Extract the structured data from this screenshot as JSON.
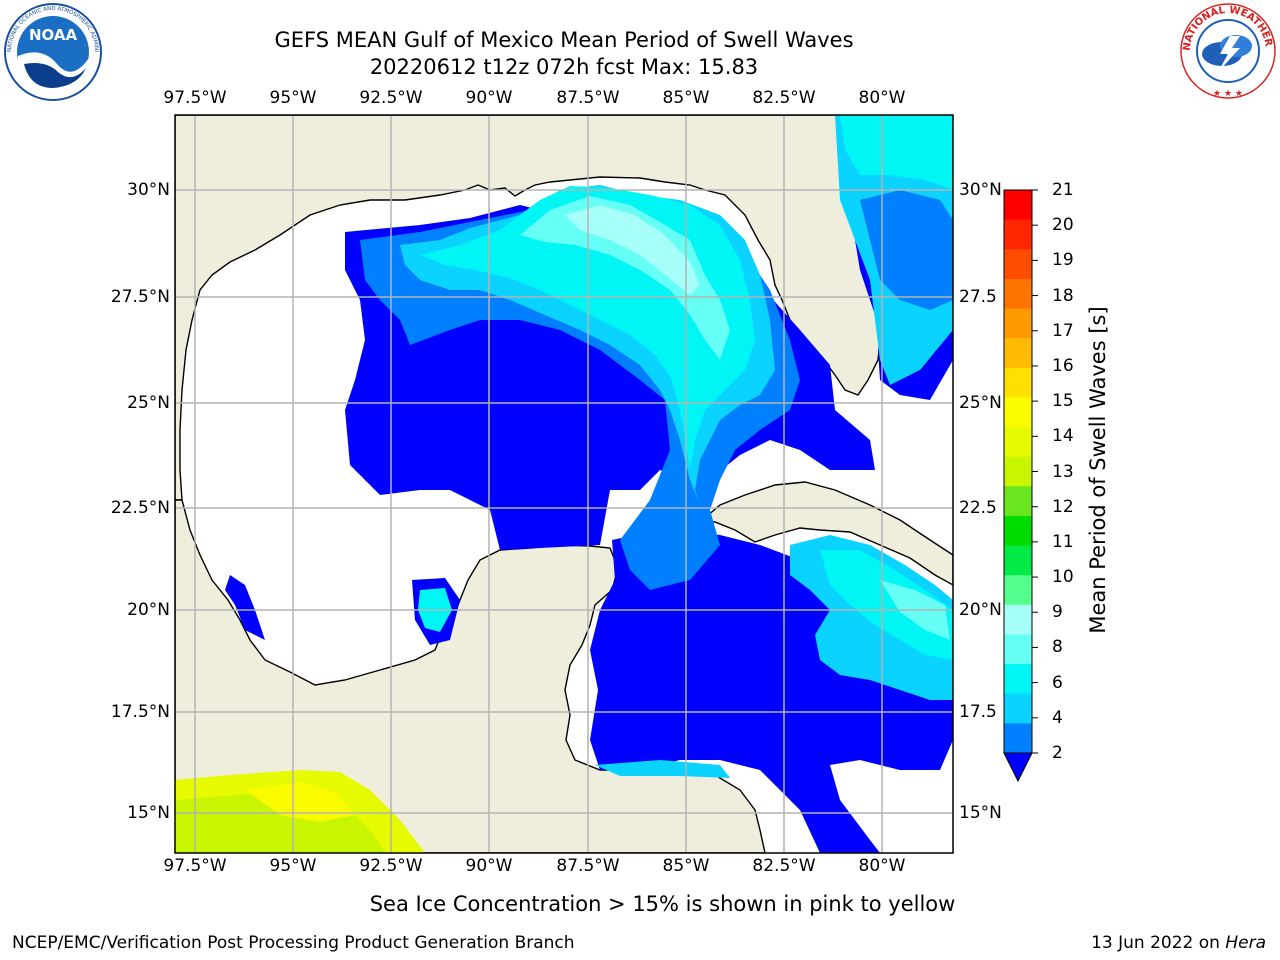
{
  "title": {
    "line1": "GEFS MEAN Gulf of Mexico Mean Period of Swell Waves",
    "line2": "20220612 t12z 072h fcst   Max: 15.83"
  },
  "map": {
    "lon_ticks": [
      "97.5°W",
      "95°W",
      "92.5°W",
      "90°W",
      "87.5°W",
      "85°W",
      "82.5°W",
      "80°W"
    ],
    "lat_ticks_left": [
      "30°N",
      "27.5°N",
      "25°N",
      "22.5°N",
      "20°N",
      "17.5°N",
      "15°N"
    ],
    "lat_ticks_right": [
      "30°N",
      "27.5",
      "25°N",
      "22.5",
      "20°N",
      "17.5",
      "15°N"
    ],
    "land_color": "#efeedc",
    "grid_color": "#b4b4b4"
  },
  "colorbar": {
    "label": "Mean Period of Swell Waves [s]",
    "ticks": [
      "21",
      "20",
      "19",
      "18",
      "17",
      "16",
      "15",
      "14",
      "13",
      "12",
      "11",
      "10",
      "9",
      "8",
      "6",
      "4",
      "2"
    ],
    "colors_top_to_bottom": [
      "#ff0000",
      "#ff2600",
      "#ff4d00",
      "#ff7300",
      "#ff9900",
      "#ffbb00",
      "#ffe000",
      "#fbfb00",
      "#e6fa00",
      "#c8f500",
      "#69e61e",
      "#00dc00",
      "#00eb45",
      "#55ff8e",
      "#a6fff9",
      "#66fff6",
      "#00f5f5",
      "#0bd3ff",
      "#0080ff"
    ],
    "extend_color": "#0000ff"
  },
  "note": "Sea Ice Concentration > 15% is shown in pink to yellow",
  "footer": {
    "left": "NCEP/EMC/Verification Post Processing Product Generation Branch",
    "date": "13 Jun 2022 on",
    "machine": "Hera"
  },
  "logos": {
    "noaa_text": "NOAA",
    "noaa_ring_text": "NATIONAL OCEANIC AND ATMOSPHERIC ADMINISTRATION · U.S. DEPARTMENT OF COMMERCE",
    "nws_ring_text": "NATIONAL WEATHER SERVICE"
  }
}
